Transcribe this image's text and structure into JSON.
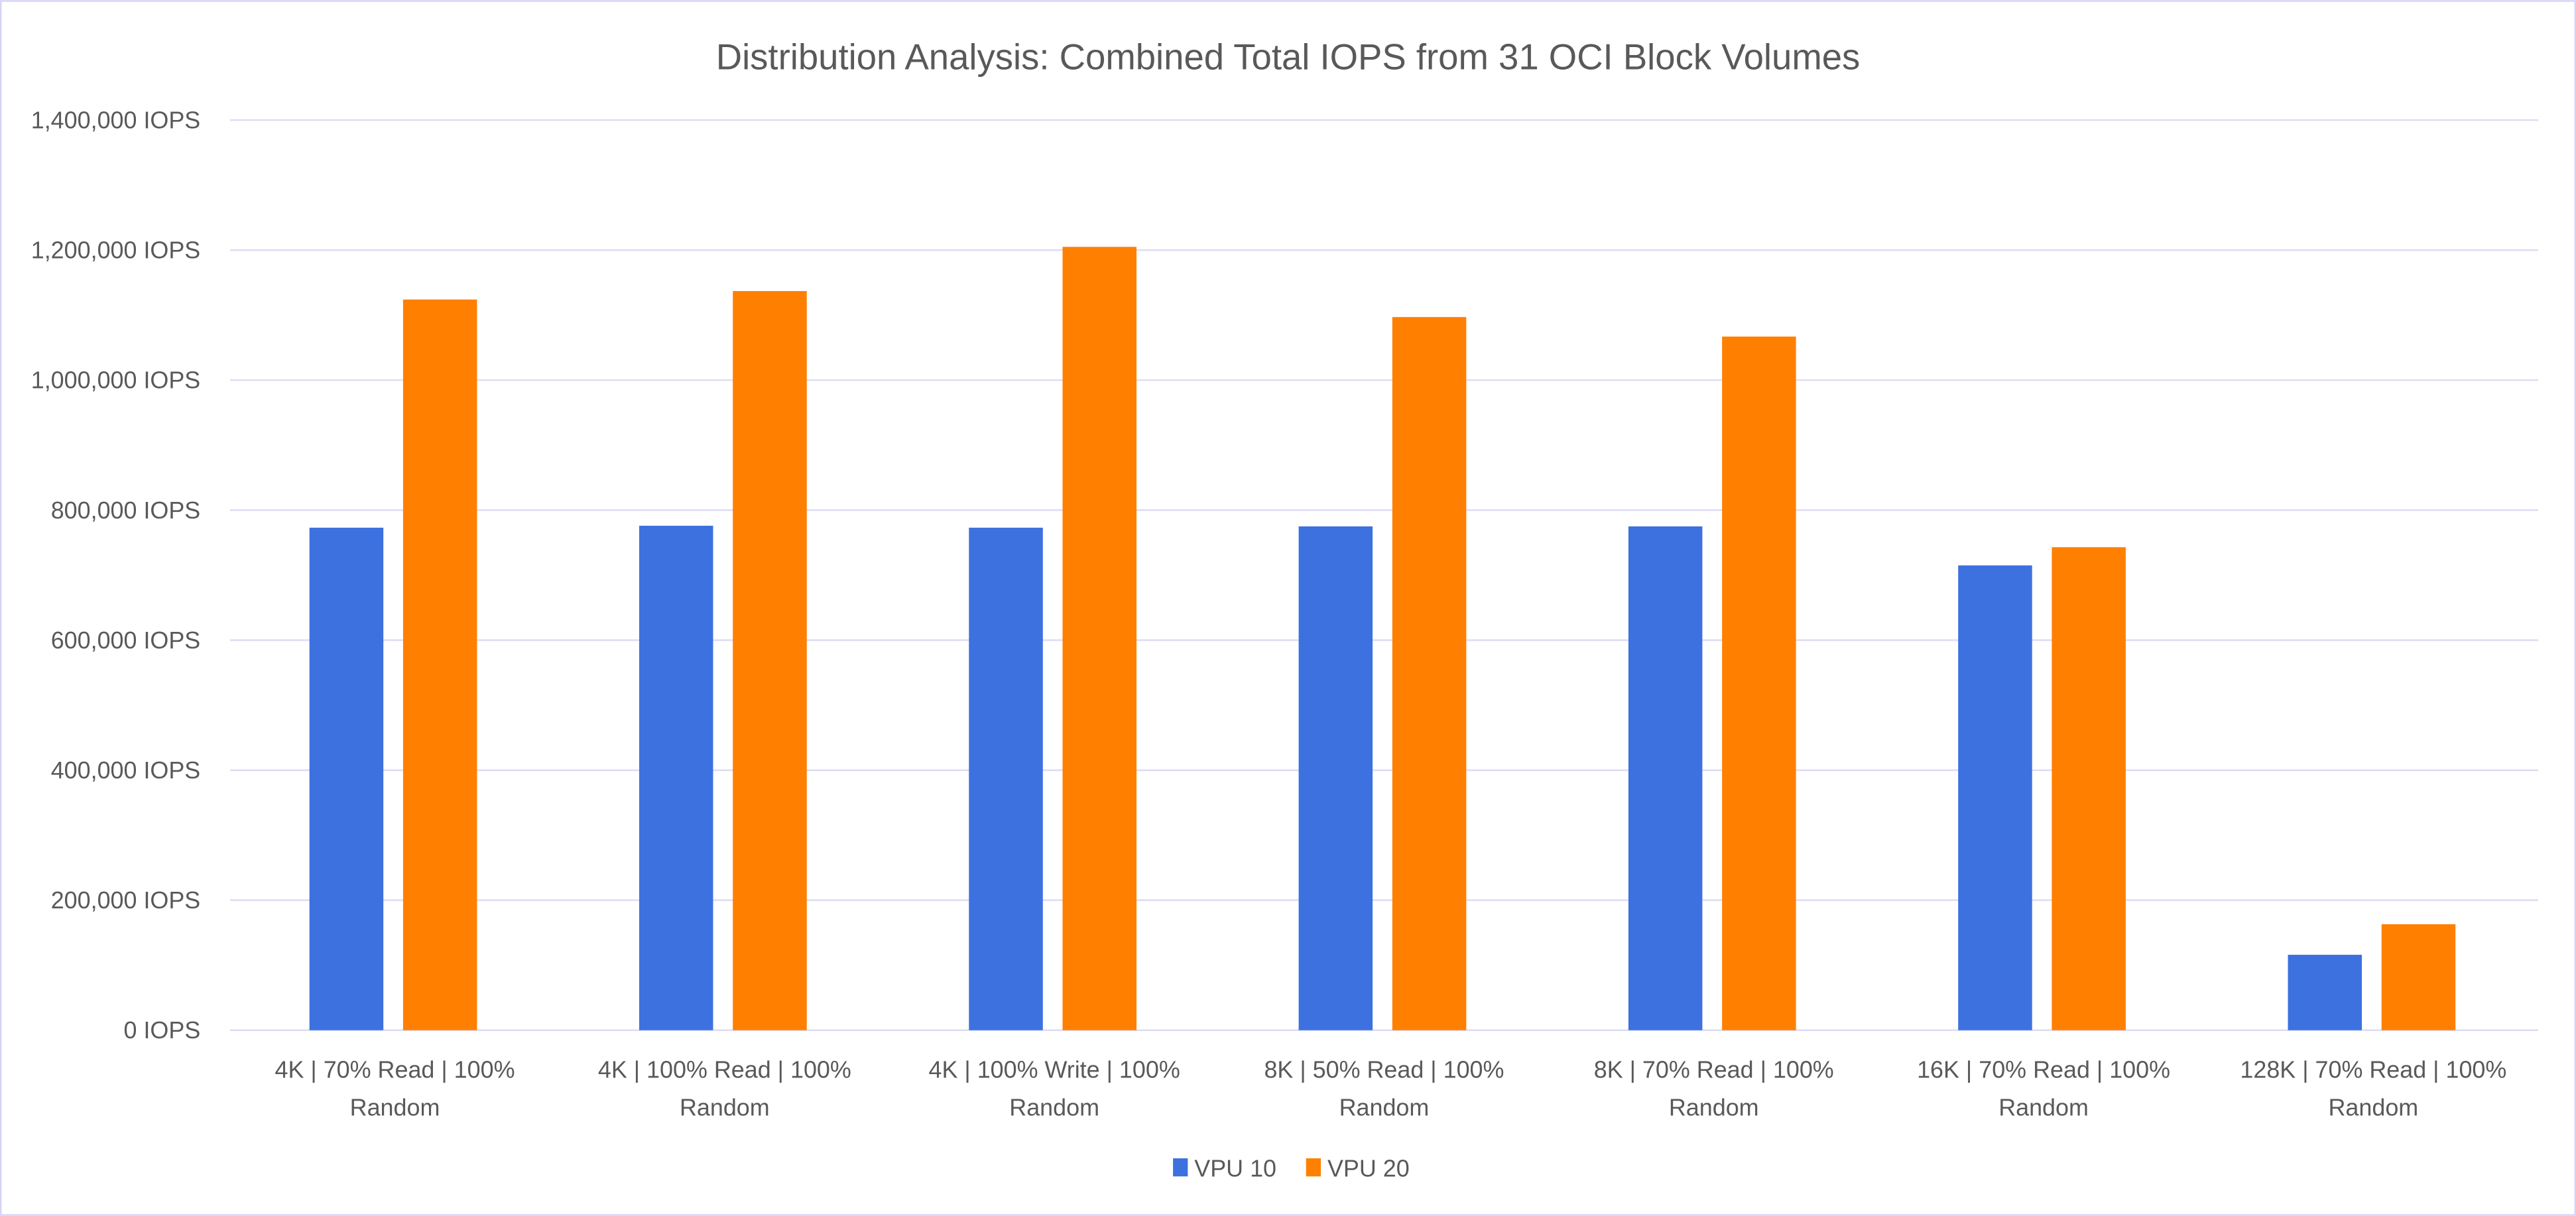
{
  "chart_data": {
    "type": "bar",
    "title": "Distribution Analysis: Combined Total IOPS from 31 OCI Block Volumes",
    "xlabel": "",
    "ylabel": "",
    "ylim": [
      0,
      1400000
    ],
    "y_ticks": [
      "0 IOPS",
      "200,000 IOPS",
      "400,000 IOPS",
      "600,000 IOPS",
      "800,000 IOPS",
      "1,000,000 IOPS",
      "1,200,000 IOPS",
      "1,400,000 IOPS"
    ],
    "y_tick_values": [
      0,
      200000,
      400000,
      600000,
      800000,
      1000000,
      1200000,
      1400000
    ],
    "grid": true,
    "legend_position": "bottom",
    "categories": [
      [
        "4K | 70% Read | 100%",
        "Random"
      ],
      [
        "4K | 100% Read | 100%",
        "Random"
      ],
      [
        "4K | 100% Write | 100%",
        "Random"
      ],
      [
        "8K | 50% Read | 100%",
        "Random"
      ],
      [
        "8K | 70% Read | 100%",
        "Random"
      ],
      [
        "16K | 70% Read | 100%",
        "Random"
      ],
      [
        "128K | 70% Read | 100%",
        "Random"
      ]
    ],
    "series": [
      {
        "name": "VPU 10",
        "color": "#3C71DF",
        "values": [
          773000,
          776000,
          773000,
          775000,
          775000,
          715000,
          116000
        ]
      },
      {
        "name": "VPU 20",
        "color": "#FF7F00",
        "values": [
          1124000,
          1137000,
          1205000,
          1097000,
          1067000,
          743000,
          163000
        ]
      }
    ],
    "colors": {
      "grid": "#DCDCF5",
      "border": "#D4D4F7",
      "text": "#595959"
    }
  }
}
